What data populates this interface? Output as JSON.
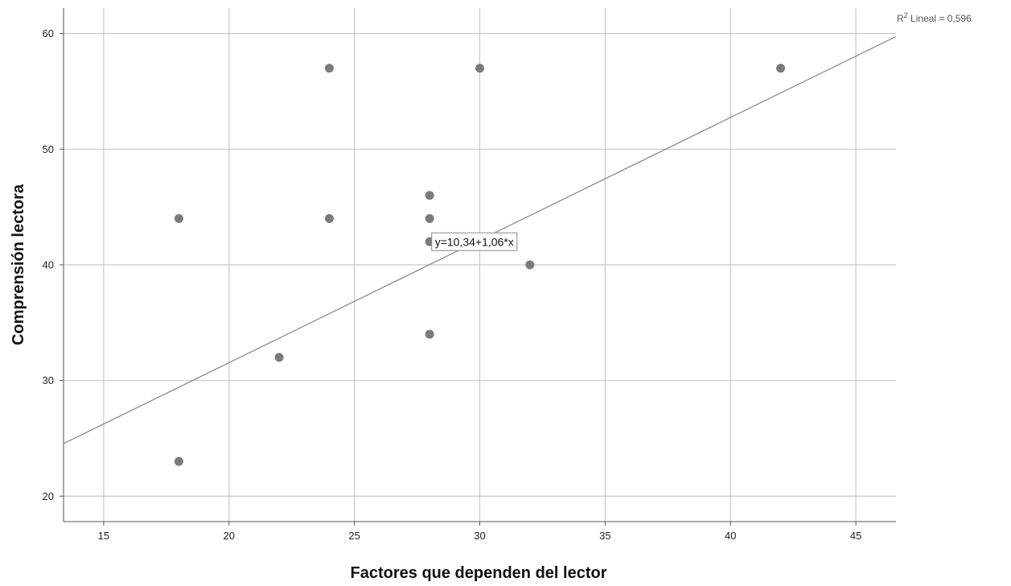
{
  "chart_data": {
    "type": "scatter",
    "xlabel": "Factores que dependen del lector",
    "ylabel": "Comprensión lectora",
    "xlim": [
      13.4,
      46.6
    ],
    "ylim": [
      17.8,
      62.2
    ],
    "xticks": [
      15,
      20,
      25,
      30,
      35,
      40,
      45
    ],
    "yticks": [
      20,
      30,
      40,
      50,
      60
    ],
    "grid": true,
    "series": [
      {
        "points": [
          {
            "x": 18,
            "y": 44
          },
          {
            "x": 18,
            "y": 23
          },
          {
            "x": 22,
            "y": 32
          },
          {
            "x": 24,
            "y": 57
          },
          {
            "x": 24,
            "y": 44
          },
          {
            "x": 28,
            "y": 46
          },
          {
            "x": 28,
            "y": 44
          },
          {
            "x": 28,
            "y": 42
          },
          {
            "x": 28,
            "y": 34
          },
          {
            "x": 30,
            "y": 57
          },
          {
            "x": 32,
            "y": 40
          },
          {
            "x": 42,
            "y": 57
          }
        ]
      }
    ],
    "fit_line": {
      "intercept": 10.34,
      "slope": 1.06,
      "equation_label": "y=10,34+1,06*x",
      "label_x": 28.05,
      "label_y": 42
    },
    "r2_label": {
      "prefix": "R",
      "superscript": "2",
      "text": " Lineal = 0,596"
    },
    "colors": {
      "point": "#7a7a7a",
      "grid": "#c8c8c8",
      "fit_line": "#8c8c8c",
      "axis": "#555555"
    }
  }
}
